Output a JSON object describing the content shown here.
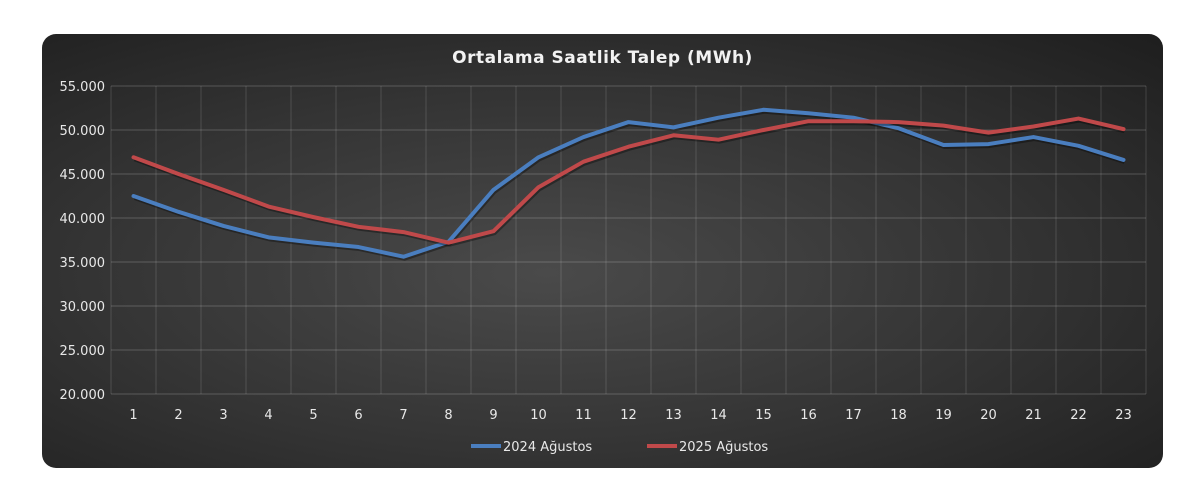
{
  "chart_data": {
    "type": "line",
    "title": "Ortalama Saatlik Talep (MWh)",
    "xlabel": "",
    "ylabel": "",
    "categories": [
      "1",
      "2",
      "3",
      "4",
      "5",
      "6",
      "7",
      "8",
      "9",
      "10",
      "11",
      "12",
      "13",
      "14",
      "15",
      "16",
      "17",
      "18",
      "19",
      "20",
      "21",
      "22",
      "23"
    ],
    "ylim": [
      20000,
      55000
    ],
    "yticks": [
      20000,
      25000,
      30000,
      35000,
      40000,
      45000,
      50000,
      55000
    ],
    "ytick_labels": [
      "20.000",
      "25.000",
      "30.000",
      "35.000",
      "40.000",
      "45.000",
      "50.000",
      "55.000"
    ],
    "grid": true,
    "legend_position": "bottom",
    "series": [
      {
        "name": "2024 Ağustos",
        "color": "#4a7ebf",
        "values": [
          42500,
          40700,
          39100,
          37800,
          37200,
          36700,
          35600,
          37300,
          43200,
          46900,
          49200,
          50900,
          50300,
          51400,
          52300,
          51900,
          51400,
          50200,
          48300,
          48400,
          49200,
          48200,
          46600
        ]
      },
      {
        "name": "2025 Ağustos",
        "color": "#c0494a",
        "values": [
          46900,
          45000,
          43200,
          41300,
          40100,
          39000,
          38400,
          37200,
          38500,
          43500,
          46400,
          48100,
          49400,
          48900,
          50000,
          51000,
          51000,
          50900,
          50500,
          49700,
          50400,
          51300,
          50100
        ]
      }
    ]
  }
}
